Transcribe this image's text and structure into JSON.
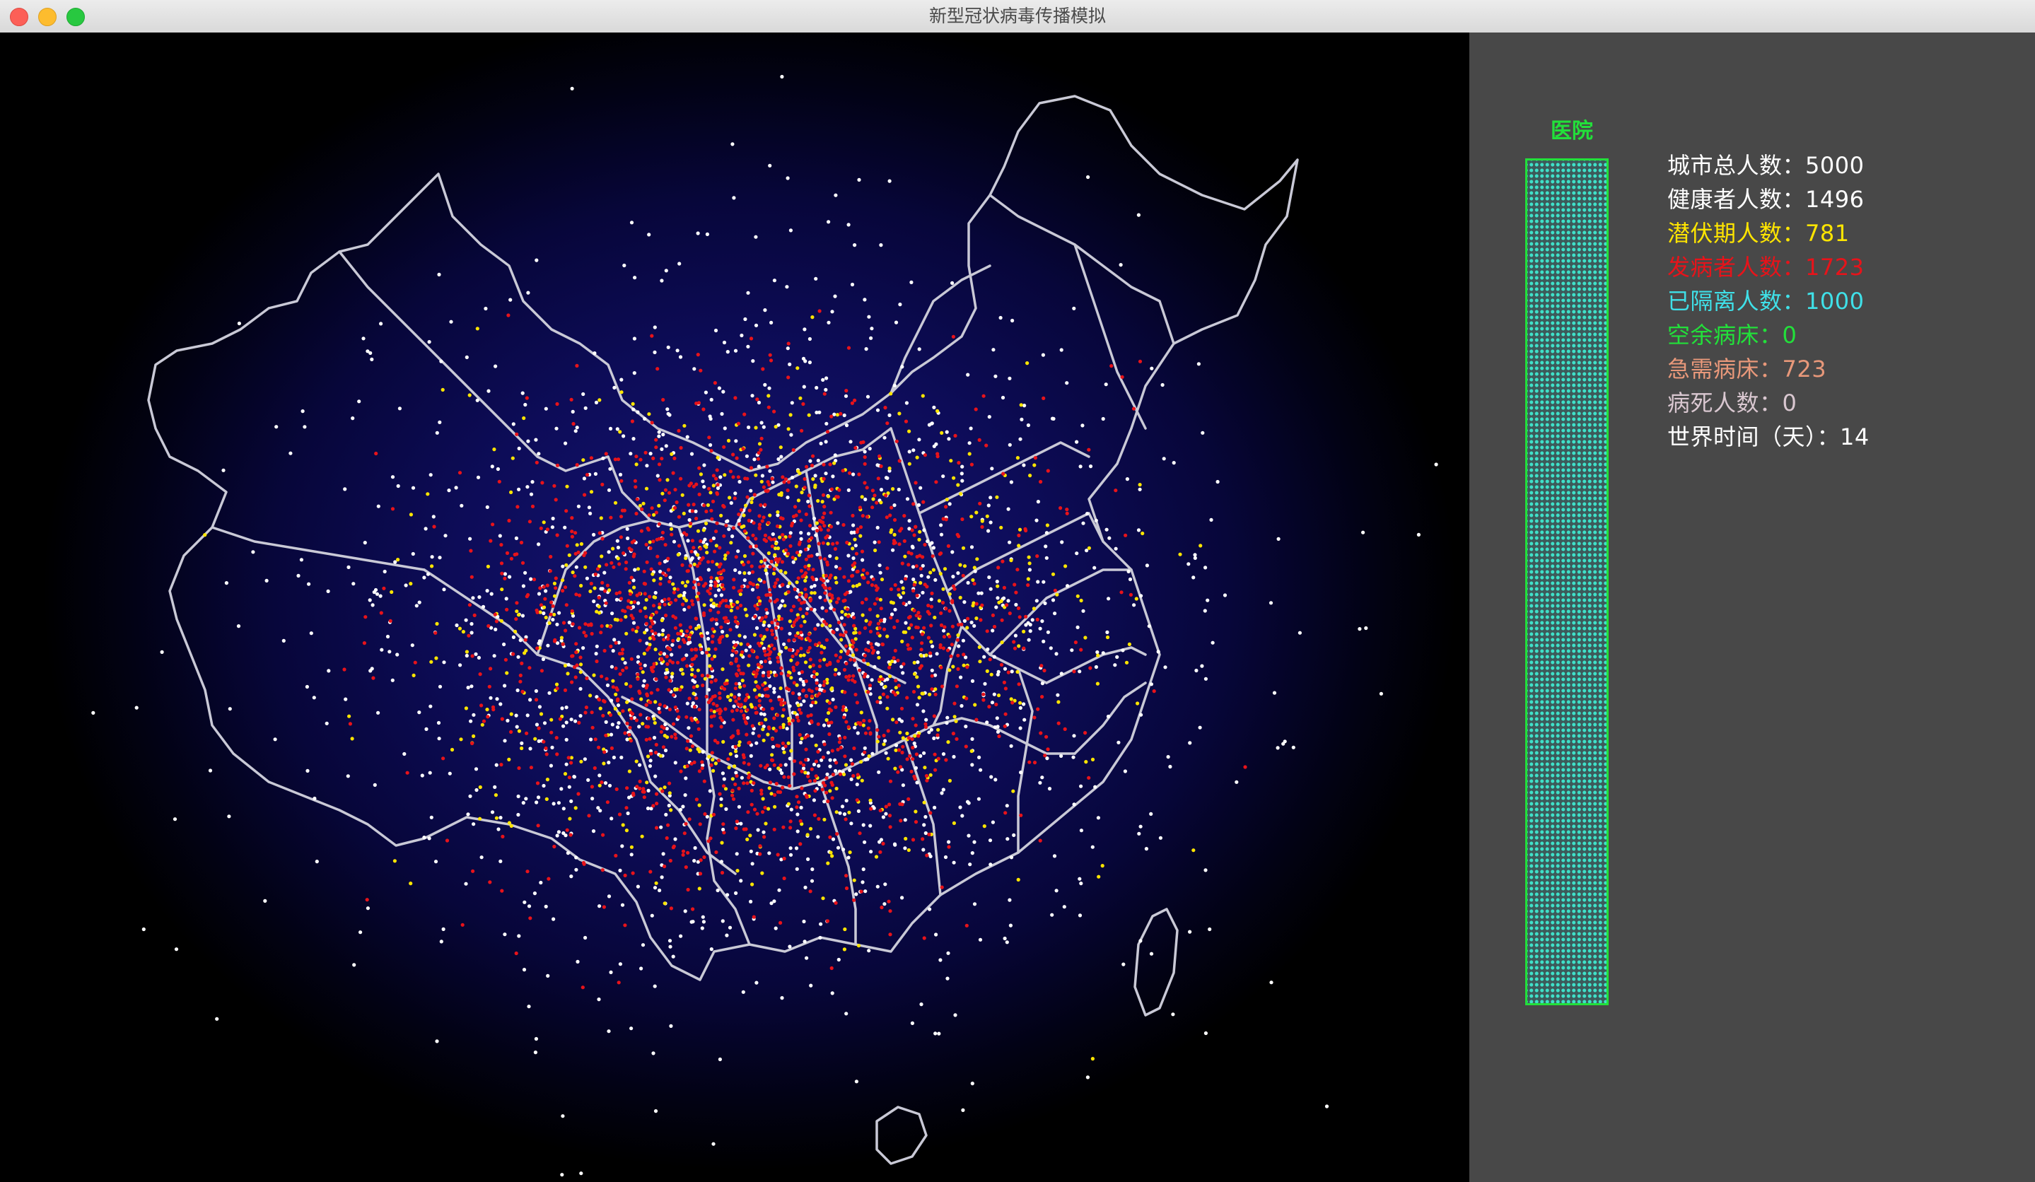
{
  "window": {
    "title": "新型冠状病毒传播模拟"
  },
  "hospital": {
    "label": "医院"
  },
  "colors": {
    "healthy": "#ffffff",
    "incubating": "#ffe500",
    "sick": "#e8131a",
    "quarantined": "#3fe0e8",
    "empty_beds": "#22e03a",
    "needed_beds": "#e8987a",
    "deaths": "#d9c7d0",
    "hospital_border": "#22e03a",
    "map_border": "#c9c9d6"
  },
  "stats": [
    {
      "key": "total",
      "text": "城市总人数：5000",
      "color": "#ffffff"
    },
    {
      "key": "healthy",
      "text": "健康者人数：1496",
      "color": "#ffffff"
    },
    {
      "key": "incubating",
      "text": "潜伏期人数：781",
      "color": "#ffe500"
    },
    {
      "key": "sick",
      "text": "发病者人数：1723",
      "color": "#e8131a"
    },
    {
      "key": "quarantined",
      "text": "已隔离人数：1000",
      "color": "#3fe0e8"
    },
    {
      "key": "empty_beds",
      "text": "空余病床：0",
      "color": "#22e03a"
    },
    {
      "key": "needed_beds",
      "text": "急需病床：723",
      "color": "#e8987a"
    },
    {
      "key": "deaths",
      "text": "病死人数：0",
      "color": "#d9c7d0"
    },
    {
      "key": "world_time",
      "text": "世界时间（天）：14",
      "color": "#ffffff"
    }
  ],
  "simulation": {
    "population": 5000,
    "healthy": 1496,
    "incubating": 781,
    "sick": 1723,
    "quarantined": 1000,
    "empty_beds": 0,
    "needed_beds": 723,
    "deaths": 0,
    "day": 14
  }
}
